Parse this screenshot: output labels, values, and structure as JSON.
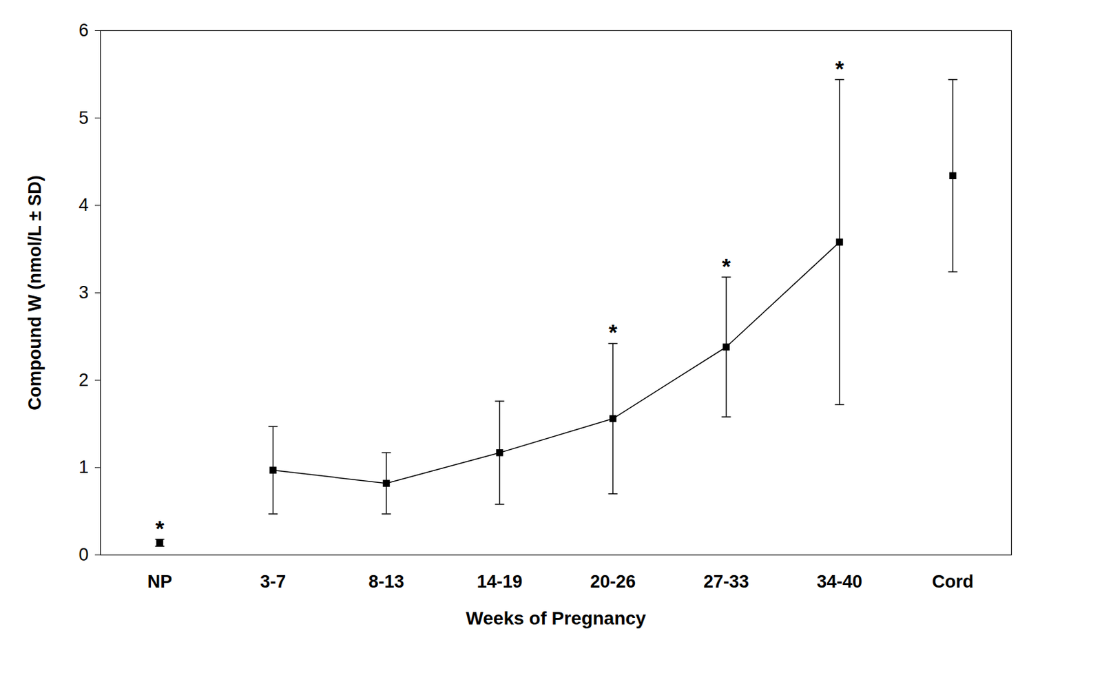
{
  "chart_data": {
    "type": "line",
    "x_label": "Weeks of Pregnancy",
    "y_label": "Compound W (nmol/L ± SD)",
    "categories": [
      "NP",
      "3-7",
      "8-13",
      "14-19",
      "20-26",
      "27-33",
      "34-40",
      "Cord"
    ],
    "series": [
      {
        "type": "line",
        "color": "#000000",
        "marker": "square",
        "values": [
          null,
          0.97,
          0.82,
          1.17,
          1.56,
          2.38,
          3.58,
          null
        ],
        "sd": [
          null,
          0.5,
          0.35,
          0.59,
          0.86,
          0.8,
          1.86,
          null
        ]
      },
      {
        "type": "scatter",
        "color": "#000000",
        "marker": "square",
        "values": [
          0.14,
          null,
          null,
          null,
          null,
          null,
          null,
          4.34
        ],
        "sd": [
          0.04,
          null,
          null,
          null,
          null,
          null,
          null,
          1.1
        ]
      }
    ],
    "annotations": [
      {
        "category": "NP",
        "text": "*"
      },
      {
        "category": "20-26",
        "text": "*"
      },
      {
        "category": "27-33",
        "text": "*"
      },
      {
        "category": "34-40",
        "text": "*"
      }
    ],
    "ylim": [
      0,
      6
    ],
    "yticks": [
      0,
      1,
      2,
      3,
      4,
      5,
      6
    ],
    "grid": false
  }
}
